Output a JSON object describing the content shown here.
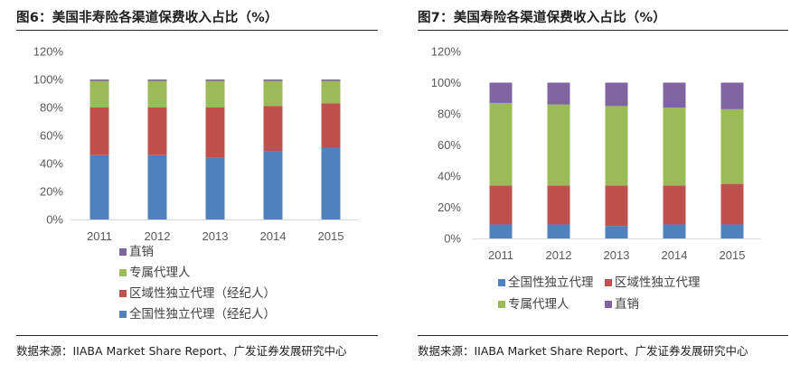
{
  "source_text": "数据来源：IIABA Market Share Report、广发证券发展研究中心",
  "chart_data": [
    {
      "title": "图6：美国非寿险各渠道保费收入占比（%）",
      "type": "bar",
      "stacked": true,
      "categories": [
        "2011",
        "2012",
        "2013",
        "2014",
        "2015"
      ],
      "ylim": [
        0,
        120
      ],
      "yticks": [
        "0%",
        "20%",
        "40%",
        "60%",
        "80%",
        "100%",
        "120%"
      ],
      "grid": false,
      "legend_position": "bottom",
      "series": [
        {
          "name": "全国性独立代理（经纪人）",
          "color": "#4f81bd",
          "values": [
            46,
            46,
            44,
            49,
            51
          ]
        },
        {
          "name": "区域性独立代理（经纪人）",
          "color": "#c0504d",
          "values": [
            34,
            34,
            36,
            32,
            32
          ]
        },
        {
          "name": "专属代理人",
          "color": "#9bbb59",
          "values": [
            19,
            19,
            19,
            18,
            16
          ]
        },
        {
          "name": "直销",
          "color": "#8064a2",
          "values": [
            1,
            1,
            1,
            1,
            1
          ]
        }
      ]
    },
    {
      "title": "图7：美国寿险各渠道保费收入占比（%）",
      "type": "bar",
      "stacked": true,
      "categories": [
        "2011",
        "2012",
        "2013",
        "2014",
        "2015"
      ],
      "ylim": [
        0,
        120
      ],
      "yticks": [
        "0%",
        "20%",
        "40%",
        "60%",
        "80%",
        "100%",
        "120%"
      ],
      "grid": false,
      "legend_position": "bottom",
      "series": [
        {
          "name": "全国性独立代理",
          "color": "#4f81bd",
          "values": [
            9,
            9,
            8,
            9,
            9
          ]
        },
        {
          "name": "区域性独立代理",
          "color": "#c0504d",
          "values": [
            25,
            25,
            26,
            25,
            26
          ]
        },
        {
          "name": "专属代理人",
          "color": "#9bbb59",
          "values": [
            53,
            52,
            51,
            50,
            48
          ]
        },
        {
          "name": "直销",
          "color": "#8064a2",
          "values": [
            13,
            14,
            15,
            16,
            17
          ]
        }
      ]
    }
  ]
}
